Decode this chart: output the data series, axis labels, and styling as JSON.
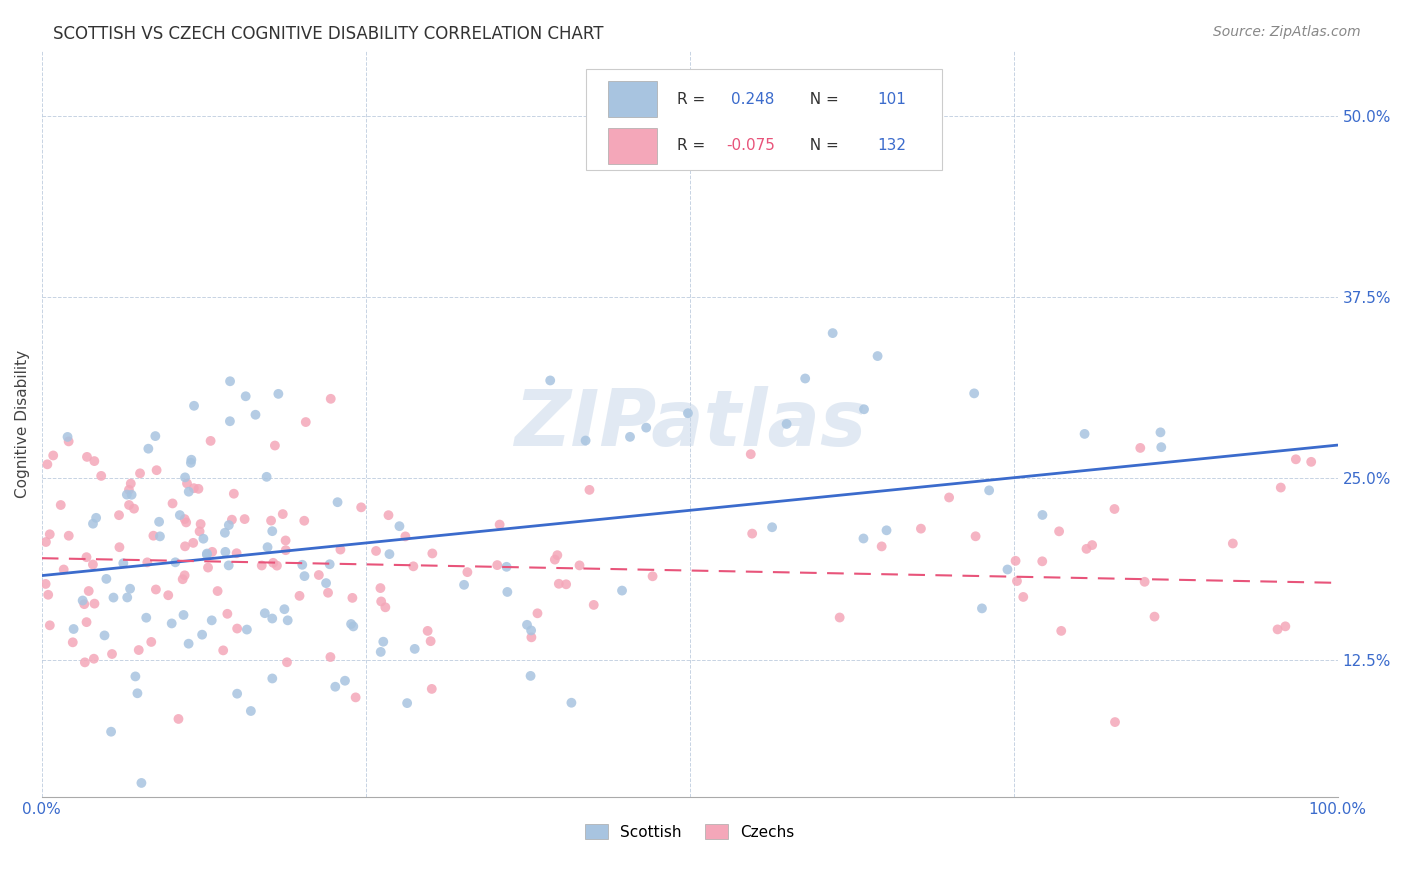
{
  "title": "SCOTTISH VS CZECH COGNITIVE DISABILITY CORRELATION CHART",
  "source": "Source: ZipAtlas.com",
  "ylabel": "Cognitive Disability",
  "ytick_labels": [
    "12.5%",
    "25.0%",
    "37.5%",
    "50.0%"
  ],
  "ytick_values": [
    0.125,
    0.25,
    0.375,
    0.5
  ],
  "xlim": [
    0.0,
    1.0
  ],
  "ylim": [
    0.03,
    0.545
  ],
  "legend_label1": "Scottish",
  "legend_label2": "Czechs",
  "R1": 0.248,
  "N1": 101,
  "R2": -0.075,
  "N2": 132,
  "color_scottish": "#a8c4e0",
  "color_czech": "#f4a7b9",
  "color_line1": "#3b6bcc",
  "color_line2": "#e8547a",
  "color_tick": "#3b6bcc",
  "background_color": "#ffffff",
  "watermark": "ZIPatlas",
  "line1_x0": 0.0,
  "line1_y0": 0.183,
  "line1_x1": 1.0,
  "line1_y1": 0.273,
  "line2_x0": 0.0,
  "line2_y0": 0.195,
  "line2_x1": 1.0,
  "line2_y1": 0.178
}
